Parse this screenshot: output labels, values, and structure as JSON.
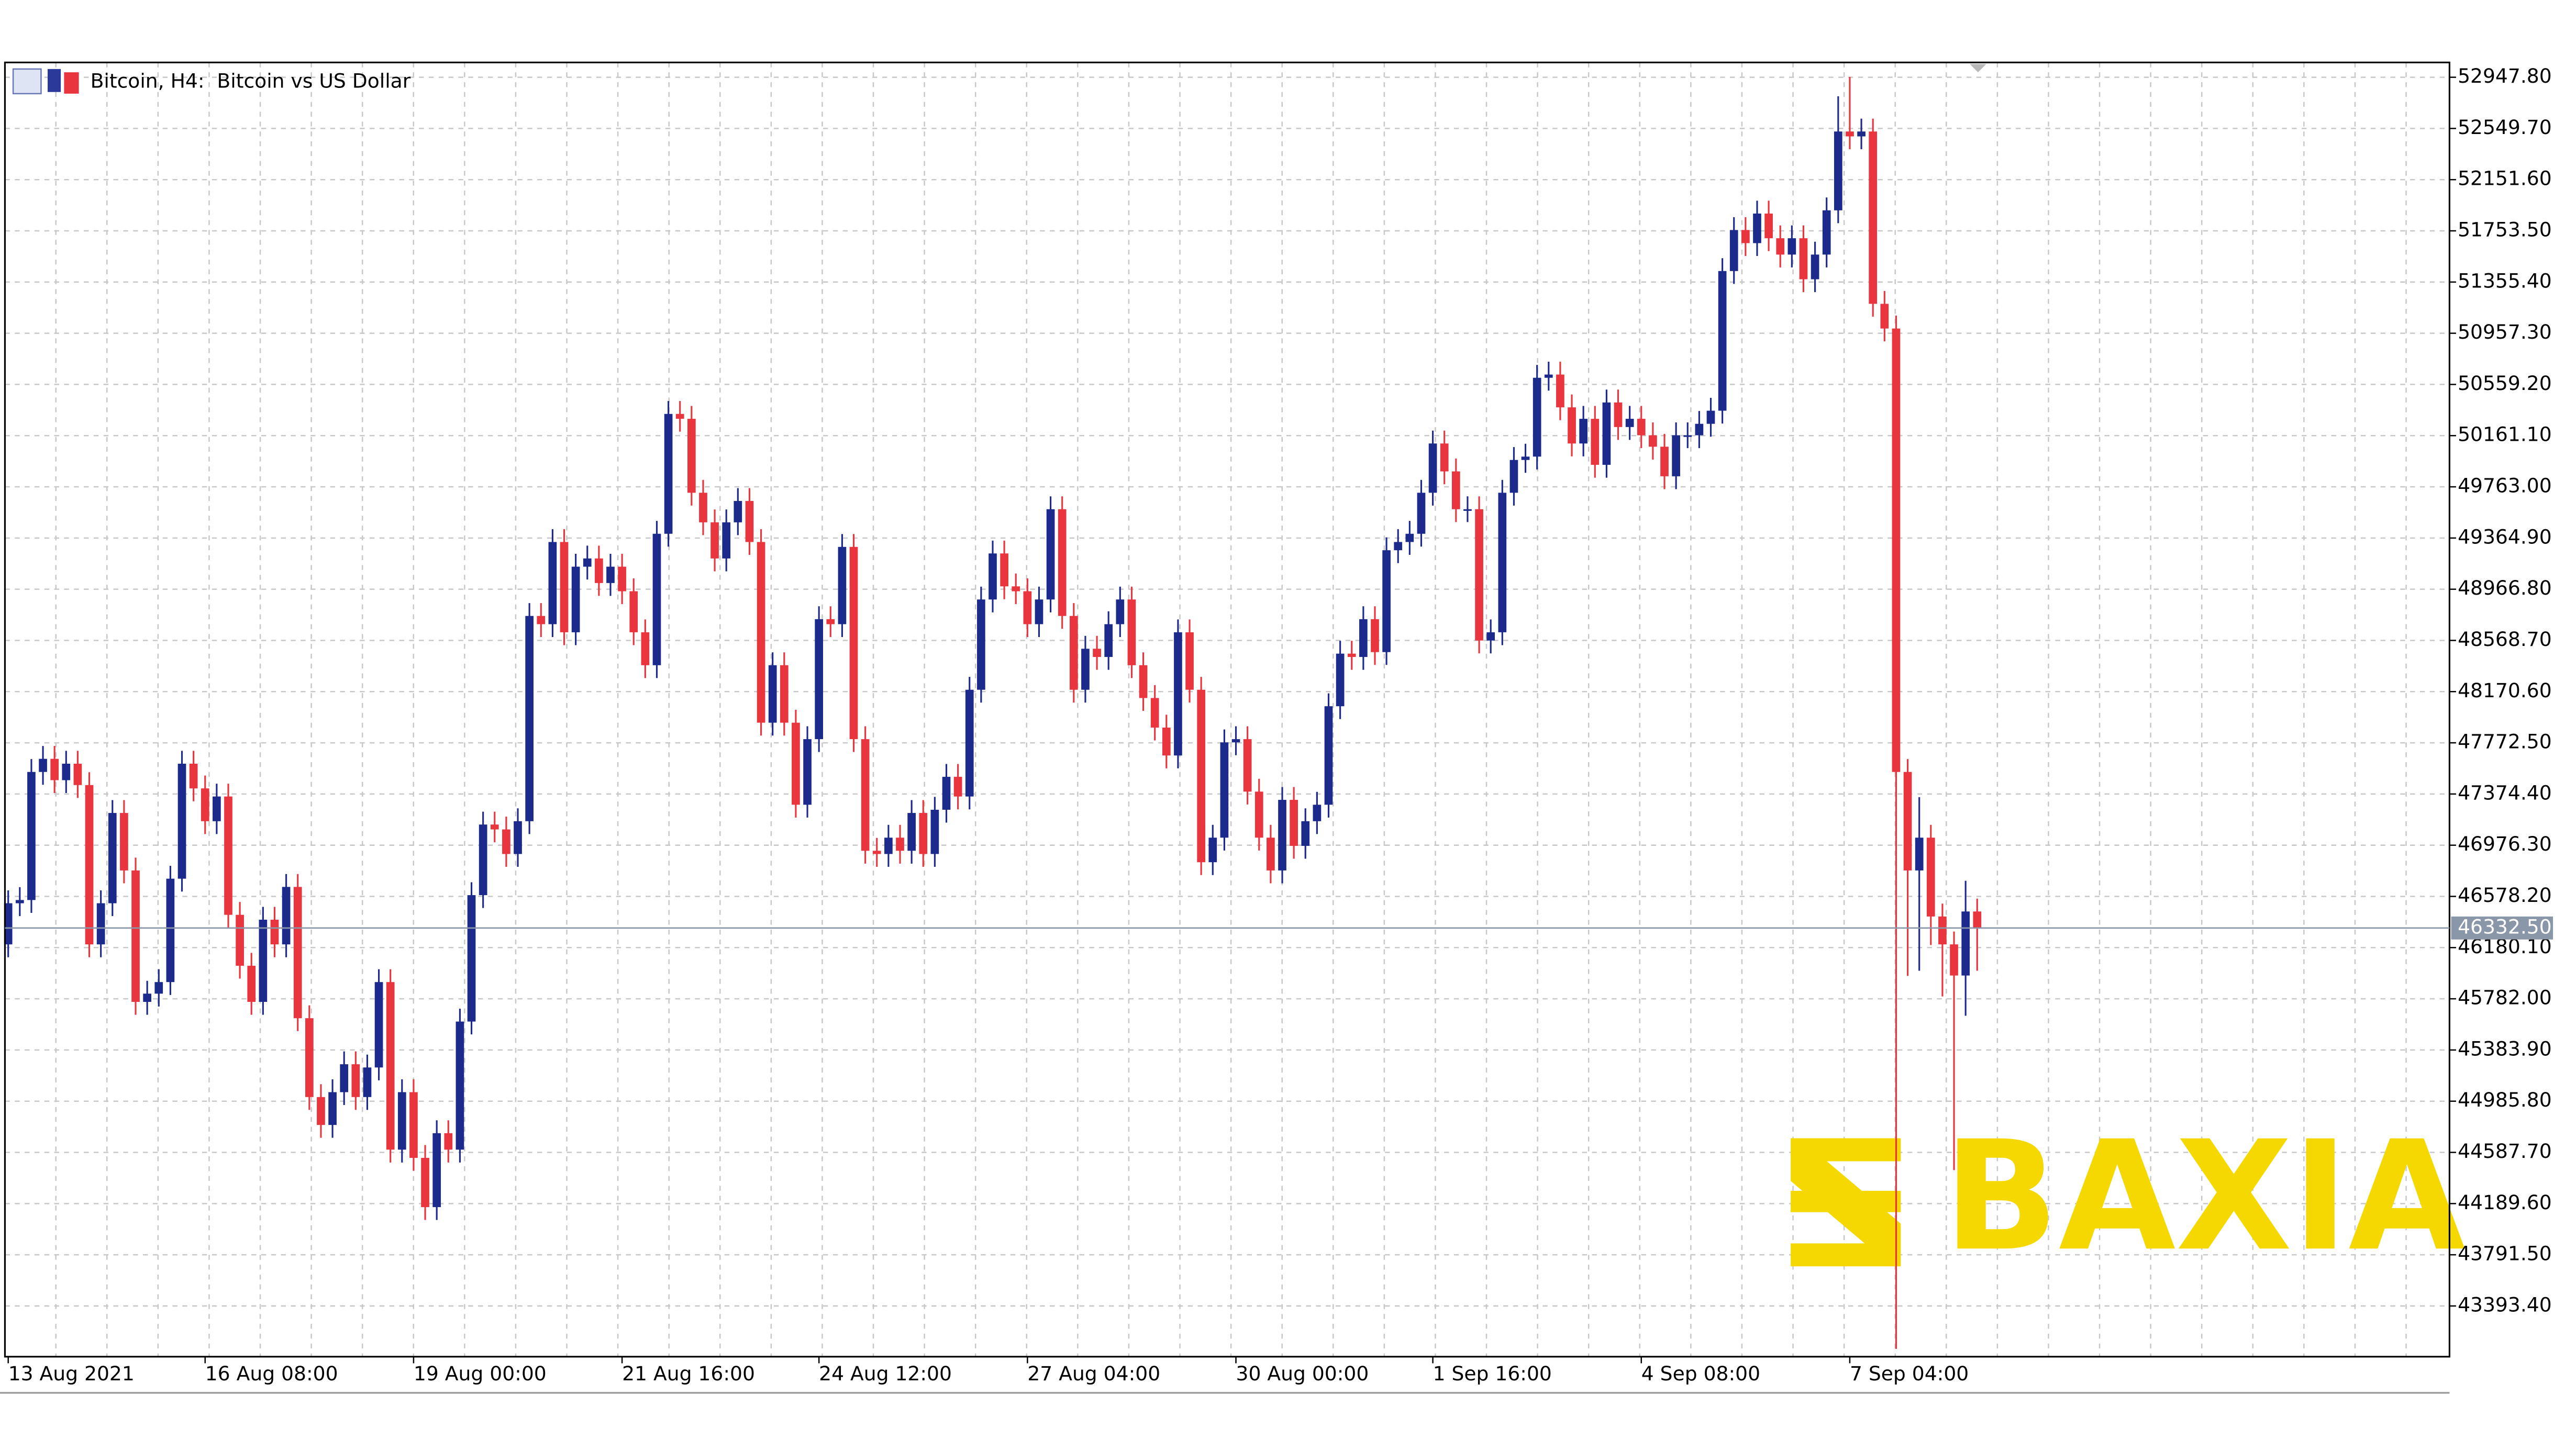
{
  "chart_data": {
    "type": "candlestick",
    "title": "Bitcoin, H4:  Bitcoin vs US Dollar",
    "watermark": "BAXIA",
    "up_color": "#1c2a8c",
    "down_color": "#e8353e",
    "grid": true,
    "categories": [
      "13 Aug 2021",
      null,
      null,
      null,
      null,
      null,
      null,
      null,
      null,
      null,
      null,
      null,
      null,
      null,
      null,
      null,
      null,
      "16 Aug 08:00",
      null,
      null,
      null,
      null,
      null,
      null,
      null,
      null,
      null,
      null,
      null,
      null,
      null,
      null,
      null,
      null,
      null,
      "19 Aug 00:00",
      null,
      null,
      null,
      null,
      null,
      null,
      null,
      null,
      null,
      null,
      null,
      null,
      null,
      null,
      null,
      null,
      null,
      "21 Aug 16:00",
      null,
      null,
      null,
      null,
      null,
      null,
      null,
      null,
      null,
      null,
      null,
      null,
      null,
      null,
      null,
      null,
      "24 Aug 12:00",
      null,
      null,
      null,
      null,
      null,
      null,
      null,
      null,
      null,
      null,
      null,
      null,
      null,
      null,
      null,
      null,
      null,
      "27 Aug 04:00",
      null,
      null,
      null,
      null,
      null,
      null,
      null,
      null,
      null,
      null,
      null,
      null,
      null,
      null,
      null,
      null,
      null,
      "30 Aug 00:00",
      null,
      null,
      null,
      null,
      null,
      null,
      null,
      null,
      null,
      null,
      null,
      null,
      null,
      null,
      null,
      null,
      "1 Sep 16:00",
      null,
      null,
      null,
      null,
      null,
      null,
      null,
      null,
      null,
      null,
      null,
      null,
      null,
      null,
      null,
      null,
      null,
      "4 Sep 08:00",
      null,
      null,
      null,
      null,
      null,
      null,
      null,
      null,
      null,
      null,
      null,
      null,
      null,
      null,
      null,
      null,
      null,
      "7 Sep 04:00",
      null,
      null,
      null,
      null,
      null,
      null,
      null,
      null,
      null,
      null,
      null
    ],
    "open": [
      46205,
      46525,
      46550,
      47546,
      47648,
      47482,
      47610,
      47444,
      46205,
      46525,
      47227,
      46780,
      45758,
      45822,
      45912,
      46716,
      47610,
      47418,
      47163,
      47355,
      46435,
      46039,
      45758,
      46397,
      46205,
      46652,
      45631,
      45018,
      44801,
      45056,
      45273,
      45018,
      45248,
      45912,
      44609,
      45056,
      44545,
      44162,
      44737,
      44609,
      45605,
      46588,
      47137,
      47099,
      46908,
      47163,
      48759,
      48695,
      49334,
      48632,
      49142,
      49206,
      49015,
      49142,
      48951,
      48632,
      48376,
      49398,
      50330,
      50292,
      49717,
      49487,
      49206,
      49487,
      49653,
      49334,
      47929,
      48376,
      47929,
      47291,
      47801,
      48734,
      48695,
      49296,
      47801,
      46933,
      46908,
      47035,
      46933,
      47227,
      46908,
      47252,
      47508,
      47355,
      48185,
      48887,
      49245,
      48989,
      48951,
      48695,
      48887,
      49589,
      48759,
      48185,
      48504,
      48440,
      48695,
      48887,
      48376,
      48121,
      47891,
      47674,
      48632,
      48185,
      46844,
      47035,
      47776,
      47801,
      47393,
      47035,
      46780,
      47329,
      46971,
      47163,
      47291,
      48057,
      48466,
      48440,
      48734,
      48478,
      49270,
      49334,
      49398,
      49717,
      50100,
      49883,
      49589,
      49589,
      48568,
      48632,
      49717,
      49972,
      49998,
      50611,
      50636,
      50381,
      50100,
      50292,
      49934,
      50419,
      50228,
      50292,
      50164,
      50075,
      49845,
      50164,
      50164,
      50253,
      50355,
      51441,
      51760,
      51658,
      51888,
      51696,
      51569,
      51696,
      51377,
      51569,
      51913,
      52526,
      52488,
      52526,
      51186,
      50994,
      47546,
      46780,
      47035,
      46422,
      46205,
      45963,
      46461
    ],
    "high": [
      46625,
      46650,
      47646,
      47748,
      47748,
      47710,
      47710,
      47544,
      46625,
      47327,
      47327,
      46880,
      45922,
      46012,
      46816,
      47710,
      47710,
      47518,
      47455,
      47455,
      46535,
      46139,
      46497,
      46497,
      46752,
      46752,
      45731,
      45118,
      45156,
      45373,
      45373,
      45348,
      46012,
      46012,
      45156,
      45156,
      44645,
      44837,
      44837,
      45705,
      46688,
      47237,
      47237,
      47199,
      47263,
      48859,
      48859,
      49434,
      49434,
      49242,
      49306,
      49306,
      49242,
      49242,
      49051,
      48732,
      49498,
      50430,
      50430,
      50392,
      49817,
      49587,
      49587,
      49753,
      49753,
      49434,
      48476,
      48476,
      48029,
      47901,
      48834,
      48834,
      49396,
      49396,
      47901,
      47033,
      47135,
      47135,
      47327,
      47327,
      47352,
      47608,
      47608,
      48285,
      48987,
      49345,
      49345,
      49089,
      49051,
      48987,
      49689,
      49689,
      48859,
      48604,
      48604,
      48795,
      48987,
      48987,
      48476,
      48221,
      47991,
      48732,
      48732,
      48285,
      47135,
      47876,
      47901,
      47901,
      47493,
      47135,
      47429,
      47429,
      47263,
      47391,
      48157,
      48566,
      48566,
      48834,
      48834,
      49370,
      49434,
      49498,
      49817,
      50200,
      50200,
      49983,
      49689,
      49689,
      48732,
      49817,
      50072,
      50098,
      50711,
      50736,
      50736,
      50481,
      50392,
      50392,
      50519,
      50519,
      50392,
      50392,
      50264,
      50175,
      50264,
      50264,
      50353,
      50455,
      51541,
      51860,
      51860,
      51988,
      51988,
      51796,
      51796,
      51796,
      51669,
      52013,
      52800,
      52950,
      52626,
      52626,
      51286,
      51094,
      47646,
      47350,
      47135,
      46522,
      46305,
      46700,
      46561
    ],
    "low": [
      46105,
      46425,
      46450,
      47446,
      47382,
      47382,
      47344,
      46105,
      46105,
      46425,
      46680,
      45658,
      45658,
      45722,
      45812,
      46616,
      47318,
      47063,
      47063,
      46335,
      45939,
      45658,
      45658,
      46105,
      46105,
      45531,
      44918,
      44701,
      44701,
      44956,
      44918,
      44918,
      45148,
      44509,
      44509,
      44445,
      44062,
      44062,
      44509,
      44509,
      45505,
      46488,
      46999,
      46808,
      46808,
      47063,
      48595,
      48595,
      48532,
      48532,
      49042,
      48915,
      48915,
      48851,
      48532,
      48276,
      48276,
      49298,
      50192,
      49617,
      49387,
      49106,
      49106,
      49387,
      49234,
      47829,
      47829,
      47829,
      47191,
      47191,
      47701,
      48595,
      48595,
      47701,
      46833,
      46808,
      46808,
      46833,
      46833,
      46808,
      46808,
      47152,
      47255,
      47255,
      48085,
      48787,
      48889,
      48851,
      48595,
      48595,
      48787,
      48659,
      48085,
      48085,
      48340,
      48340,
      48595,
      48276,
      48021,
      47791,
      47574,
      47574,
      48085,
      46744,
      46744,
      46935,
      47676,
      47293,
      46935,
      46680,
      46680,
      46871,
      46871,
      47063,
      47191,
      47957,
      48340,
      48340,
      48378,
      48378,
      49170,
      49234,
      49298,
      49617,
      49783,
      49489,
      49489,
      48468,
      48468,
      48532,
      49617,
      49872,
      49898,
      50511,
      50281,
      50000,
      50000,
      49834,
      49834,
      50128,
      50128,
      50064,
      49975,
      49745,
      49745,
      50064,
      50064,
      50153,
      50255,
      51341,
      51558,
      51558,
      51596,
      51469,
      51469,
      51277,
      51277,
      51469,
      51813,
      52388,
      52388,
      51086,
      50894,
      43060,
      45960,
      46000,
      46200,
      45800,
      44450,
      45650,
      46000
    ],
    "close": [
      46525,
      46550,
      47546,
      47648,
      47482,
      47610,
      47444,
      46205,
      46525,
      47227,
      46780,
      45758,
      45822,
      45912,
      46716,
      47610,
      47418,
      47163,
      47355,
      46435,
      46039,
      45758,
      46397,
      46205,
      46652,
      45631,
      45018,
      44801,
      45056,
      45273,
      45018,
      45248,
      45912,
      44609,
      45056,
      44545,
      44162,
      44737,
      44609,
      45605,
      46588,
      47137,
      47099,
      46908,
      47163,
      48759,
      48695,
      49334,
      48632,
      49142,
      49206,
      49015,
      49142,
      48951,
      48632,
      48376,
      49398,
      50330,
      50292,
      49717,
      49487,
      49206,
      49487,
      49653,
      49334,
      47929,
      48376,
      47929,
      47291,
      47801,
      48734,
      48695,
      49296,
      47801,
      46933,
      46908,
      47035,
      46933,
      47227,
      46908,
      47252,
      47508,
      47355,
      48185,
      48887,
      49245,
      48989,
      48951,
      48695,
      48887,
      49589,
      48759,
      48185,
      48504,
      48440,
      48695,
      48887,
      48376,
      48121,
      47891,
      47674,
      48632,
      48185,
      46844,
      47035,
      47776,
      47801,
      47393,
      47035,
      46780,
      47329,
      46971,
      47163,
      47291,
      48057,
      48466,
      48440,
      48734,
      48478,
      49270,
      49334,
      49398,
      49717,
      50100,
      49883,
      49589,
      49589,
      48568,
      48632,
      49717,
      49972,
      49998,
      50611,
      50636,
      50381,
      50100,
      50292,
      49934,
      50419,
      50228,
      50292,
      50164,
      50075,
      49845,
      50164,
      50164,
      50253,
      50355,
      51441,
      51760,
      51658,
      51888,
      51696,
      51569,
      51696,
      51377,
      51569,
      51913,
      52526,
      52488,
      52526,
      51186,
      50994,
      47546,
      46780,
      47035,
      46422,
      46205,
      45963,
      46461,
      46332.5
    ],
    "current_price": {
      "value": 46332.5,
      "label": "46332.50"
    },
    "ylim": [
      42999,
      53063
    ],
    "yticks": [
      {
        "value": 52947.8,
        "label": "52947.80"
      },
      {
        "value": 52549.7,
        "label": "52549.70"
      },
      {
        "value": 52151.6,
        "label": "52151.60"
      },
      {
        "value": 51753.5,
        "label": "51753.50"
      },
      {
        "value": 51355.4,
        "label": "51355.40"
      },
      {
        "value": 50957.3,
        "label": "50957.30"
      },
      {
        "value": 50559.2,
        "label": "50559.20"
      },
      {
        "value": 50161.1,
        "label": "50161.10"
      },
      {
        "value": 49763,
        "label": "49763.00"
      },
      {
        "value": 49364.9,
        "label": "49364.90"
      },
      {
        "value": 48966.8,
        "label": "48966.80"
      },
      {
        "value": 48568.7,
        "label": "48568.70"
      },
      {
        "value": 48170.6,
        "label": "48170.60"
      },
      {
        "value": 47772.5,
        "label": "47772.50"
      },
      {
        "value": 47374.4,
        "label": "47374.40"
      },
      {
        "value": 46976.3,
        "label": "46976.30"
      },
      {
        "value": 46578.2,
        "label": "46578.20"
      },
      {
        "value": 46180.1,
        "label": "46180.10"
      },
      {
        "value": 45782,
        "label": "45782.00"
      },
      {
        "value": 45383.9,
        "label": "45383.90"
      },
      {
        "value": 44985.8,
        "label": "44985.80"
      },
      {
        "value": 44587.7,
        "label": "44587.70"
      },
      {
        "value": 44189.6,
        "label": "44189.60"
      },
      {
        "value": 43791.5,
        "label": "43791.50"
      },
      {
        "value": 43393.4,
        "label": "43393.40"
      }
    ]
  }
}
